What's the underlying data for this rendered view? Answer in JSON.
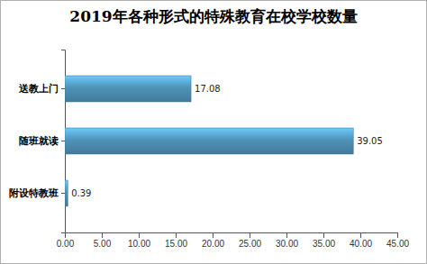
{
  "chart_data": {
    "type": "bar",
    "orientation": "horizontal",
    "title": "2019年各种形式的特殊教育在校学校数量",
    "categories": [
      "送教上门",
      "随班就读",
      "附设特教班"
    ],
    "values": [
      17.08,
      39.05,
      0.39
    ],
    "color": "#4f93b8",
    "data_labels": true,
    "grid": false,
    "xlim": [
      0,
      45
    ],
    "xticks": [
      {
        "value": 0,
        "label": "0.00"
      },
      {
        "value": 5,
        "label": "5.00"
      },
      {
        "value": 10,
        "label": "10.00"
      },
      {
        "value": 15,
        "label": "15.00"
      },
      {
        "value": 20,
        "label": "20.00"
      },
      {
        "value": 25,
        "label": "25.00"
      },
      {
        "value": 30,
        "label": "30.00"
      },
      {
        "value": 35,
        "label": "35.00"
      },
      {
        "value": 40,
        "label": "40.00"
      },
      {
        "value": 45,
        "label": "45.00"
      }
    ]
  }
}
